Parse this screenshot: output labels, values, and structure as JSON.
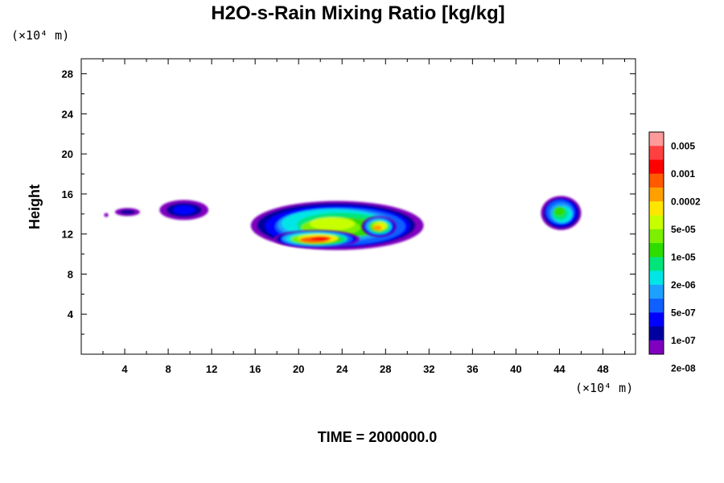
{
  "chart_data": {
    "type": "heatmap",
    "title": "H2O-s-Rain Mixing Ratio [kg/kg]",
    "ylabel": "Height",
    "x_unit": "(×10⁴ m)",
    "y_unit": "(×10⁴ m)",
    "footer": "TIME = 2000000.0",
    "xlim": [
      0,
      51
    ],
    "ylim": [
      0,
      29.5
    ],
    "x_ticks": [
      "4",
      "8",
      "12",
      "16",
      "20",
      "24",
      "28",
      "32",
      "36",
      "40",
      "44",
      "48"
    ],
    "y_ticks": [
      "4",
      "8",
      "12",
      "16",
      "20",
      "24",
      "28"
    ],
    "grid": false,
    "colorbar": {
      "labels": [
        "0.005",
        "0.001",
        "0.0002",
        "5e-05",
        "1e-05",
        "2e-06",
        "5e-07",
        "1e-07",
        "2e-08"
      ],
      "colors": [
        "#ff9a9a",
        "#ff4040",
        "#ff0000",
        "#ff5a00",
        "#ffa000",
        "#ffe600",
        "#c8ff00",
        "#7cf000",
        "#2edc00",
        "#00e57a",
        "#00e6e6",
        "#1ea0ff",
        "#1060ff",
        "#0000ff",
        "#0000a0",
        "#8000c0"
      ]
    },
    "regions": [
      {
        "x": [
          2.1,
          2.5
        ],
        "y": [
          13.7,
          14.1
        ],
        "level": 0
      },
      {
        "x": [
          3.1,
          5.4
        ],
        "y": [
          13.8,
          14.6
        ],
        "level": 1
      },
      {
        "x": [
          7.2,
          11.7
        ],
        "y": [
          13.4,
          15.4
        ],
        "level": 2
      },
      {
        "x": [
          15.6,
          31.5
        ],
        "y": [
          10.4,
          15.3
        ],
        "level": 9
      },
      {
        "x": [
          17.7,
          25.6
        ],
        "y": [
          10.6,
          12.4
        ],
        "level": 13
      },
      {
        "x": [
          25.8,
          29.0
        ],
        "y": [
          11.7,
          13.8
        ],
        "level": 11
      },
      {
        "x": [
          42.3,
          46.0
        ],
        "y": [
          12.4,
          15.8
        ],
        "level": 7
      }
    ]
  }
}
